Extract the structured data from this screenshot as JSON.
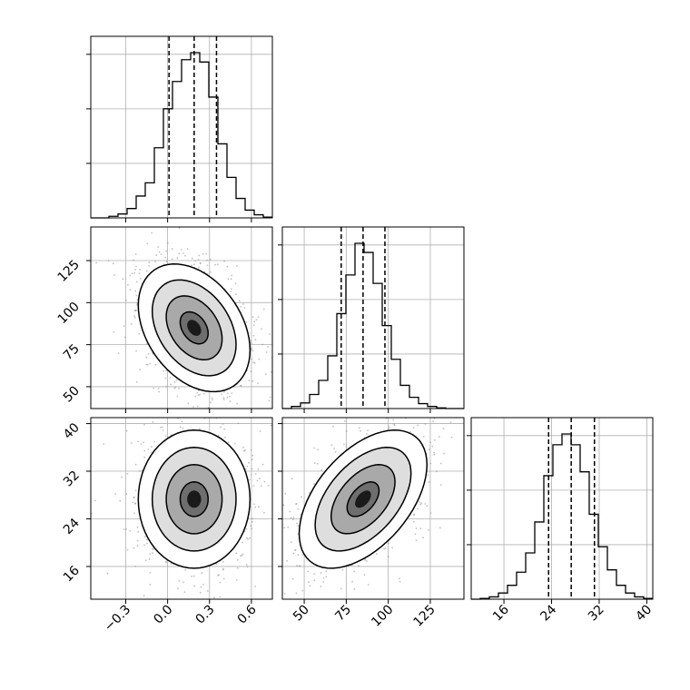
{
  "chart_data": {
    "type": "corner",
    "title": "",
    "parameters": [
      "",
      "",
      ""
    ],
    "ranges": [
      [
        -0.55,
        0.75
      ],
      [
        37,
        145
      ],
      [
        10.5,
        41
      ]
    ],
    "axis_ticks": [
      {
        "values": [
          -0.3,
          0.0,
          0.3,
          0.6
        ],
        "labels": [
          "−0.3",
          "0.0",
          "0.3",
          "0.6"
        ]
      },
      {
        "values": [
          50,
          75,
          100,
          125
        ],
        "labels": [
          "50",
          "75",
          "100",
          "125"
        ]
      },
      {
        "values": [
          16,
          24,
          32,
          40
        ],
        "labels": [
          "16",
          "24",
          "32",
          "40"
        ]
      }
    ],
    "quantiles": [
      [
        0.01,
        0.19,
        0.35
      ],
      [
        72,
        85,
        98
      ],
      [
        23.5,
        27.3,
        31.2
      ]
    ],
    "marginal_histograms": [
      {
        "bin_edges": [
          -0.55,
          -0.485,
          -0.42,
          -0.355,
          -0.29,
          -0.225,
          -0.16,
          -0.095,
          -0.03,
          0.035,
          0.1,
          0.165,
          0.23,
          0.295,
          0.36,
          0.425,
          0.49,
          0.555,
          0.62,
          0.685,
          0.75
        ],
        "counts": [
          0,
          0,
          2,
          5,
          12,
          28,
          45,
          90,
          140,
          175,
          203,
          212,
          200,
          155,
          95,
          52,
          25,
          10,
          4,
          1
        ]
      },
      {
        "bin_edges": [
          37,
          42.4,
          47.8,
          53.2,
          58.6,
          64,
          69.4,
          74.8,
          80.2,
          85.6,
          91,
          96.4,
          101.8,
          107.2,
          112.6,
          118,
          123.4,
          128.8,
          134.2,
          139.6,
          145
        ],
        "counts": [
          0,
          3,
          8,
          20,
          40,
          75,
          135,
          190,
          235,
          222,
          178,
          118,
          70,
          33,
          16,
          7,
          3,
          1,
          0,
          0
        ]
      },
      {
        "bin_edges": [
          10.5,
          12.025,
          13.55,
          15.075,
          16.6,
          18.125,
          19.65,
          21.175,
          22.7,
          24.225,
          25.75,
          27.275,
          28.8,
          30.325,
          31.85,
          33.375,
          34.9,
          36.425,
          37.95,
          39.475,
          41
        ],
        "counts": [
          0,
          1,
          3,
          8,
          18,
          35,
          60,
          100,
          160,
          200,
          214,
          200,
          165,
          110,
          68,
          38,
          18,
          8,
          3,
          1
        ]
      }
    ],
    "joint_distributions": [
      {
        "x_param": 0,
        "y_param": 1,
        "mean": [
          0.19,
          85
        ],
        "sd": [
          0.2,
          19
        ],
        "correlation": -0.35
      },
      {
        "x_param": 0,
        "y_param": 2,
        "mean": [
          0.19,
          27.3
        ],
        "sd": [
          0.2,
          5.8
        ],
        "correlation": 0.0
      },
      {
        "x_param": 1,
        "y_param": 2,
        "mean": [
          85,
          27.3
        ],
        "sd": [
          19,
          5.8
        ],
        "correlation": 0.5
      }
    ],
    "contour_levels_sigma": [
      0.5,
      1.0,
      1.5,
      2.0
    ],
    "colors": {
      "line": "#000000",
      "scatter": "#8c8c8c",
      "grid": "#b0b0b0",
      "background": "#ffffff"
    },
    "grid": true,
    "legend": "none"
  }
}
